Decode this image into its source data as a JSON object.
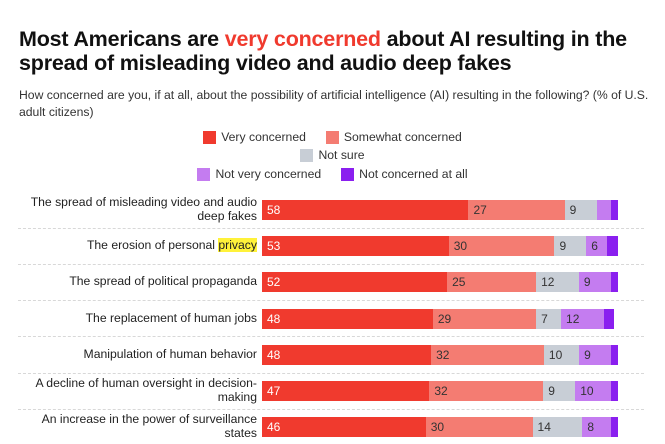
{
  "title": {
    "part1": "Most Americans are ",
    "highlight": "very concerned",
    "part2": " about AI resulting in the spread of misleading video and audio deep fakes"
  },
  "subtitle": "How concerned are you, if at all, about the possibility of artificial intelligence (AI) resulting in the following? (% of U.S. adult citizens)",
  "colors": {
    "very": "#f03a2e",
    "somewhat": "#f47c72",
    "notsure": "#c8ced6",
    "notvery": "#c47cf0",
    "notatall": "#8a1fef",
    "highlight": "#fff23a"
  },
  "legend": [
    {
      "key": "very",
      "label": "Very concerned"
    },
    {
      "key": "somewhat",
      "label": "Somewhat concerned"
    },
    {
      "key": "notsure",
      "label": "Not sure"
    },
    {
      "key": "notvery",
      "label": "Not very concerned"
    },
    {
      "key": "notatall",
      "label": "Not concerned at all"
    }
  ],
  "chart_data": {
    "type": "bar",
    "orientation": "horizontal",
    "stacked": true,
    "categories": [
      "The spread of misleading video and audio deep fakes",
      "The erosion of personal privacy",
      "The spread of political propaganda",
      "The replacement of human jobs",
      "Manipulation of human behavior",
      "A decline of human oversight in decision-making",
      "An increase in the power of surveillance states"
    ],
    "series": [
      {
        "name": "Very concerned",
        "key": "very",
        "values": [
          58,
          53,
          52,
          48,
          48,
          47,
          46
        ]
      },
      {
        "name": "Somewhat concerned",
        "key": "somewhat",
        "values": [
          27,
          30,
          25,
          29,
          32,
          32,
          30
        ]
      },
      {
        "name": "Not sure",
        "key": "notsure",
        "values": [
          9,
          9,
          12,
          7,
          10,
          9,
          14
        ]
      },
      {
        "name": "Not very concerned",
        "key": "notvery",
        "values": [
          4,
          6,
          9,
          12,
          9,
          10,
          8
        ]
      },
      {
        "name": "Not concerned at all",
        "key": "notatall",
        "values": [
          2,
          3,
          2,
          3,
          2,
          2,
          2
        ]
      }
    ],
    "shown_labels": [
      [
        "58",
        "27",
        "9",
        "",
        ""
      ],
      [
        "53",
        "30",
        "9",
        "6",
        ""
      ],
      [
        "52",
        "25",
        "12",
        "9",
        ""
      ],
      [
        "48",
        "29",
        "7",
        "12",
        ""
      ],
      [
        "48",
        "32",
        "10",
        "9",
        ""
      ],
      [
        "47",
        "32",
        "9",
        "10",
        ""
      ],
      [
        "46",
        "30",
        "14",
        "8",
        ""
      ]
    ],
    "highlighted_word": {
      "category_index": 1,
      "word": "privacy"
    },
    "xlim": [
      0,
      100
    ],
    "legend_position": "top-center",
    "grid": false
  }
}
